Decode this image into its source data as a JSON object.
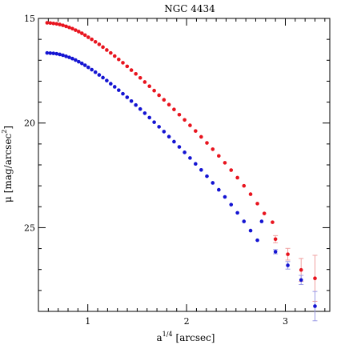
{
  "chart_data": {
    "type": "scatter",
    "title": "NGC 4434",
    "xlabel_main": "a",
    "xlabel_sup": "1/4",
    "xlabel_unit": "[arcsec]",
    "ylabel_main": "μ",
    "ylabel_unit": "[mag/arcsec",
    "ylabel_sup": "2",
    "ylabel_close": "]",
    "xlim": [
      0.5,
      3.45
    ],
    "ylim": [
      29.0,
      15.0
    ],
    "y_inverted": true,
    "x_major_ticks": [
      1,
      2,
      3
    ],
    "x_tick_labels": [
      "1",
      "2",
      "3"
    ],
    "y_major_ticks": [
      15,
      20,
      25
    ],
    "y_tick_labels": [
      "15",
      "20",
      "25"
    ],
    "grid": false,
    "series": [
      {
        "color": "#e8141e",
        "errcolor": "#f0a0a0",
        "points": [
          {
            "x": 0.588,
            "y": 15.21
          },
          {
            "x": 0.62,
            "y": 15.22
          },
          {
            "x": 0.652,
            "y": 15.24
          },
          {
            "x": 0.684,
            "y": 15.26
          },
          {
            "x": 0.716,
            "y": 15.29
          },
          {
            "x": 0.748,
            "y": 15.33
          },
          {
            "x": 0.78,
            "y": 15.38
          },
          {
            "x": 0.812,
            "y": 15.43
          },
          {
            "x": 0.844,
            "y": 15.49
          },
          {
            "x": 0.876,
            "y": 15.56
          },
          {
            "x": 0.908,
            "y": 15.63
          },
          {
            "x": 0.94,
            "y": 15.71
          },
          {
            "x": 0.972,
            "y": 15.8
          },
          {
            "x": 1.005,
            "y": 15.9
          },
          {
            "x": 1.04,
            "y": 16.0
          },
          {
            "x": 1.077,
            "y": 16.12
          },
          {
            "x": 1.115,
            "y": 16.24
          },
          {
            "x": 1.153,
            "y": 16.37
          },
          {
            "x": 1.192,
            "y": 16.51
          },
          {
            "x": 1.232,
            "y": 16.65
          },
          {
            "x": 1.272,
            "y": 16.8
          },
          {
            "x": 1.313,
            "y": 16.96
          },
          {
            "x": 1.355,
            "y": 17.12
          },
          {
            "x": 1.398,
            "y": 17.29
          },
          {
            "x": 1.441,
            "y": 17.47
          },
          {
            "x": 1.486,
            "y": 17.65
          },
          {
            "x": 1.531,
            "y": 17.84
          },
          {
            "x": 1.577,
            "y": 18.04
          },
          {
            "x": 1.624,
            "y": 18.24
          },
          {
            "x": 1.672,
            "y": 18.45
          },
          {
            "x": 1.721,
            "y": 18.67
          },
          {
            "x": 1.771,
            "y": 18.89
          },
          {
            "x": 1.822,
            "y": 19.12
          },
          {
            "x": 1.873,
            "y": 19.35
          },
          {
            "x": 1.926,
            "y": 19.6
          },
          {
            "x": 1.98,
            "y": 19.85
          },
          {
            "x": 2.035,
            "y": 20.11
          },
          {
            "x": 2.091,
            "y": 20.38
          },
          {
            "x": 2.148,
            "y": 20.66
          },
          {
            "x": 2.206,
            "y": 20.95
          },
          {
            "x": 2.265,
            "y": 21.25
          },
          {
            "x": 2.326,
            "y": 21.57
          },
          {
            "x": 2.388,
            "y": 21.9
          },
          {
            "x": 2.451,
            "y": 22.25
          },
          {
            "x": 2.515,
            "y": 22.61
          },
          {
            "x": 2.581,
            "y": 23.0
          },
          {
            "x": 2.648,
            "y": 23.4
          },
          {
            "x": 2.717,
            "y": 23.85
          },
          {
            "x": 2.787,
            "y": 24.32
          },
          {
            "x": 2.87,
            "y": 24.74
          },
          {
            "x": 2.9,
            "y": 25.55,
            "err": 0.17
          },
          {
            "x": 3.025,
            "y": 26.27,
            "err": 0.28
          },
          {
            "x": 3.16,
            "y": 27.02,
            "err": 0.55
          },
          {
            "x": 3.3,
            "y": 27.42,
            "err": 1.1
          }
        ]
      },
      {
        "color": "#1414d2",
        "errcolor": "#9a9ae6",
        "points": [
          {
            "x": 0.588,
            "y": 16.65
          },
          {
            "x": 0.62,
            "y": 16.66
          },
          {
            "x": 0.652,
            "y": 16.67
          },
          {
            "x": 0.684,
            "y": 16.69
          },
          {
            "x": 0.716,
            "y": 16.72
          },
          {
            "x": 0.748,
            "y": 16.76
          },
          {
            "x": 0.78,
            "y": 16.81
          },
          {
            "x": 0.812,
            "y": 16.86
          },
          {
            "x": 0.844,
            "y": 16.92
          },
          {
            "x": 0.876,
            "y": 16.99
          },
          {
            "x": 0.908,
            "y": 17.07
          },
          {
            "x": 0.94,
            "y": 17.15
          },
          {
            "x": 0.972,
            "y": 17.24
          },
          {
            "x": 1.005,
            "y": 17.34
          },
          {
            "x": 1.04,
            "y": 17.45
          },
          {
            "x": 1.077,
            "y": 17.57
          },
          {
            "x": 1.115,
            "y": 17.7
          },
          {
            "x": 1.153,
            "y": 17.83
          },
          {
            "x": 1.192,
            "y": 17.97
          },
          {
            "x": 1.232,
            "y": 18.12
          },
          {
            "x": 1.272,
            "y": 18.27
          },
          {
            "x": 1.313,
            "y": 18.43
          },
          {
            "x": 1.355,
            "y": 18.6
          },
          {
            "x": 1.398,
            "y": 18.77
          },
          {
            "x": 1.441,
            "y": 18.95
          },
          {
            "x": 1.486,
            "y": 19.14
          },
          {
            "x": 1.531,
            "y": 19.33
          },
          {
            "x": 1.577,
            "y": 19.53
          },
          {
            "x": 1.624,
            "y": 19.74
          },
          {
            "x": 1.672,
            "y": 19.96
          },
          {
            "x": 1.721,
            "y": 20.18
          },
          {
            "x": 1.771,
            "y": 20.41
          },
          {
            "x": 1.822,
            "y": 20.65
          },
          {
            "x": 1.873,
            "y": 20.89
          },
          {
            "x": 1.926,
            "y": 21.14
          },
          {
            "x": 1.98,
            "y": 21.4
          },
          {
            "x": 2.035,
            "y": 21.67
          },
          {
            "x": 2.091,
            "y": 21.95
          },
          {
            "x": 2.148,
            "y": 22.24
          },
          {
            "x": 2.206,
            "y": 22.54
          },
          {
            "x": 2.265,
            "y": 22.86
          },
          {
            "x": 2.326,
            "y": 23.19
          },
          {
            "x": 2.388,
            "y": 23.53
          },
          {
            "x": 2.451,
            "y": 23.9
          },
          {
            "x": 2.515,
            "y": 24.29
          },
          {
            "x": 2.581,
            "y": 24.7
          },
          {
            "x": 2.648,
            "y": 25.14
          },
          {
            "x": 2.717,
            "y": 25.6
          },
          {
            "x": 2.76,
            "y": 24.7
          },
          {
            "x": 2.9,
            "y": 26.15,
            "err": 0.1
          },
          {
            "x": 3.025,
            "y": 26.8,
            "err": 0.18
          },
          {
            "x": 3.16,
            "y": 27.5,
            "err": 0.22
          },
          {
            "x": 3.3,
            "y": 28.75,
            "err": 0.7
          }
        ]
      }
    ]
  }
}
